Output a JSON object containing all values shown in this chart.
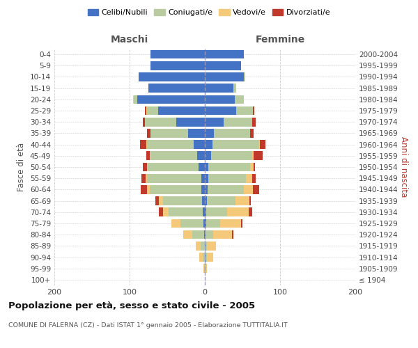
{
  "age_groups": [
    "100+",
    "95-99",
    "90-94",
    "85-89",
    "80-84",
    "75-79",
    "70-74",
    "65-69",
    "60-64",
    "55-59",
    "50-54",
    "45-49",
    "40-44",
    "35-39",
    "30-34",
    "25-29",
    "20-24",
    "15-19",
    "10-14",
    "5-9",
    "0-4"
  ],
  "birth_years": [
    "≤ 1904",
    "1905-1909",
    "1910-1914",
    "1915-1919",
    "1920-1924",
    "1925-1929",
    "1930-1934",
    "1935-1939",
    "1940-1944",
    "1945-1949",
    "1950-1954",
    "1955-1959",
    "1960-1964",
    "1965-1969",
    "1970-1974",
    "1975-1979",
    "1980-1984",
    "1985-1989",
    "1990-1994",
    "1995-1999",
    "2000-2004"
  ],
  "maschi": {
    "celibi": [
      0,
      0,
      0,
      0,
      1,
      2,
      3,
      4,
      5,
      5,
      8,
      10,
      15,
      22,
      38,
      62,
      90,
      75,
      88,
      72,
      72
    ],
    "coniugati": [
      0,
      1,
      3,
      6,
      16,
      30,
      45,
      52,
      68,
      72,
      68,
      62,
      62,
      50,
      42,
      15,
      4,
      0,
      0,
      0,
      0
    ],
    "vedovi": [
      0,
      1,
      4,
      6,
      12,
      12,
      8,
      5,
      4,
      2,
      1,
      1,
      1,
      0,
      0,
      1,
      1,
      0,
      0,
      0,
      0
    ],
    "divorziati": [
      0,
      0,
      0,
      0,
      0,
      0,
      5,
      5,
      8,
      5,
      5,
      5,
      8,
      5,
      2,
      2,
      0,
      0,
      0,
      0,
      0
    ]
  },
  "femmine": {
    "nubili": [
      0,
      0,
      1,
      1,
      1,
      2,
      2,
      3,
      4,
      5,
      5,
      8,
      10,
      12,
      25,
      42,
      40,
      38,
      52,
      48,
      52
    ],
    "coniugate": [
      0,
      1,
      2,
      2,
      10,
      18,
      28,
      38,
      48,
      50,
      55,
      55,
      62,
      48,
      38,
      22,
      12,
      4,
      2,
      0,
      0
    ],
    "vedove": [
      0,
      2,
      8,
      12,
      25,
      28,
      28,
      18,
      12,
      8,
      5,
      2,
      1,
      0,
      0,
      0,
      0,
      0,
      0,
      0,
      0
    ],
    "divorziate": [
      0,
      0,
      0,
      0,
      2,
      2,
      5,
      2,
      8,
      5,
      2,
      12,
      8,
      5,
      5,
      2,
      0,
      0,
      0,
      0,
      0
    ]
  },
  "colors": {
    "celibi": "#4472c4",
    "coniugati": "#b8cca0",
    "vedovi": "#f5c97a",
    "divorziati": "#c0392b"
  },
  "title": "Popolazione per età, sesso e stato civile - 2005",
  "subtitle": "COMUNE DI FALERNA (CZ) - Dati ISTAT 1° gennaio 2005 - Elaborazione TUTTITALIA.IT",
  "label_maschi": "Maschi",
  "label_femmine": "Femmine",
  "ylabel_left": "Fasce di età",
  "ylabel_right": "Anni di nascita",
  "legend": [
    "Celibi/Nubili",
    "Coniugati/e",
    "Vedovi/e",
    "Divorziati/e"
  ],
  "xlim": 200,
  "background_color": "#ffffff",
  "grid_color": "#cccccc"
}
